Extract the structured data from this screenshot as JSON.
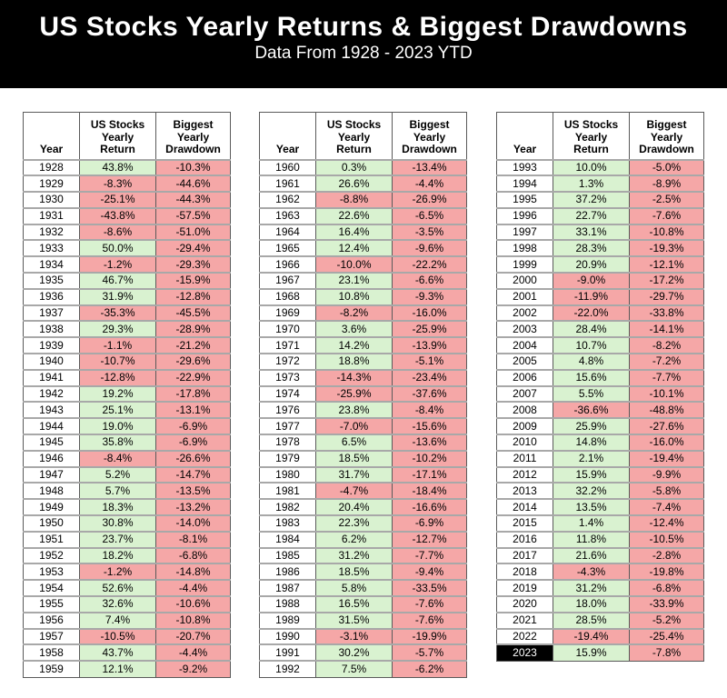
{
  "header": {
    "title": "US Stocks Yearly Returns & Biggest Drawdowns",
    "subtitle": "Data From 1928 - 2023 YTD"
  },
  "chart_data": {
    "type": "table",
    "headers": [
      "Year",
      "US Stocks\nYearly\nReturn",
      "Biggest\nYearly\nDrawdown"
    ],
    "highlight_year": "2023",
    "colors": {
      "positive_bg": "#d9f2d0",
      "negative_bg": "#f5a7a7",
      "highlight_bg": "#000000",
      "highlight_text": "#ffffff",
      "banner_bg": "#000000",
      "banner_text": "#ffffff"
    },
    "tables": [
      {
        "rows": [
          [
            "1928",
            "43.8%",
            "-10.3%"
          ],
          [
            "1929",
            "-8.3%",
            "-44.6%"
          ],
          [
            "1930",
            "-25.1%",
            "-44.3%"
          ],
          [
            "1931",
            "-43.8%",
            "-57.5%"
          ],
          [
            "1932",
            "-8.6%",
            "-51.0%"
          ],
          [
            "1933",
            "50.0%",
            "-29.4%"
          ],
          [
            "1934",
            "-1.2%",
            "-29.3%"
          ],
          [
            "1935",
            "46.7%",
            "-15.9%"
          ],
          [
            "1936",
            "31.9%",
            "-12.8%"
          ],
          [
            "1937",
            "-35.3%",
            "-45.5%"
          ],
          [
            "1938",
            "29.3%",
            "-28.9%"
          ],
          [
            "1939",
            "-1.1%",
            "-21.2%"
          ],
          [
            "1940",
            "-10.7%",
            "-29.6%"
          ],
          [
            "1941",
            "-12.8%",
            "-22.9%"
          ],
          [
            "1942",
            "19.2%",
            "-17.8%"
          ],
          [
            "1943",
            "25.1%",
            "-13.1%"
          ],
          [
            "1944",
            "19.0%",
            "-6.9%"
          ],
          [
            "1945",
            "35.8%",
            "-6.9%"
          ],
          [
            "1946",
            "-8.4%",
            "-26.6%"
          ],
          [
            "1947",
            "5.2%",
            "-14.7%"
          ],
          [
            "1948",
            "5.7%",
            "-13.5%"
          ],
          [
            "1949",
            "18.3%",
            "-13.2%"
          ],
          [
            "1950",
            "30.8%",
            "-14.0%"
          ],
          [
            "1951",
            "23.7%",
            "-8.1%"
          ],
          [
            "1952",
            "18.2%",
            "-6.8%"
          ],
          [
            "1953",
            "-1.2%",
            "-14.8%"
          ],
          [
            "1954",
            "52.6%",
            "-4.4%"
          ],
          [
            "1955",
            "32.6%",
            "-10.6%"
          ],
          [
            "1956",
            "7.4%",
            "-10.8%"
          ],
          [
            "1957",
            "-10.5%",
            "-20.7%"
          ],
          [
            "1958",
            "43.7%",
            "-4.4%"
          ],
          [
            "1959",
            "12.1%",
            "-9.2%"
          ]
        ]
      },
      {
        "rows": [
          [
            "1960",
            "0.3%",
            "-13.4%"
          ],
          [
            "1961",
            "26.6%",
            "-4.4%"
          ],
          [
            "1962",
            "-8.8%",
            "-26.9%"
          ],
          [
            "1963",
            "22.6%",
            "-6.5%"
          ],
          [
            "1964",
            "16.4%",
            "-3.5%"
          ],
          [
            "1965",
            "12.4%",
            "-9.6%"
          ],
          [
            "1966",
            "-10.0%",
            "-22.2%"
          ],
          [
            "1967",
            "23.1%",
            "-6.6%"
          ],
          [
            "1968",
            "10.8%",
            "-9.3%"
          ],
          [
            "1969",
            "-8.2%",
            "-16.0%"
          ],
          [
            "1970",
            "3.6%",
            "-25.9%"
          ],
          [
            "1971",
            "14.2%",
            "-13.9%"
          ],
          [
            "1972",
            "18.8%",
            "-5.1%"
          ],
          [
            "1973",
            "-14.3%",
            "-23.4%"
          ],
          [
            "1974",
            "-25.9%",
            "-37.6%"
          ],
          [
            "1976",
            "23.8%",
            "-8.4%"
          ],
          [
            "1977",
            "-7.0%",
            "-15.6%"
          ],
          [
            "1978",
            "6.5%",
            "-13.6%"
          ],
          [
            "1979",
            "18.5%",
            "-10.2%"
          ],
          [
            "1980",
            "31.7%",
            "-17.1%"
          ],
          [
            "1981",
            "-4.7%",
            "-18.4%"
          ],
          [
            "1982",
            "20.4%",
            "-16.6%"
          ],
          [
            "1983",
            "22.3%",
            "-6.9%"
          ],
          [
            "1984",
            "6.2%",
            "-12.7%"
          ],
          [
            "1985",
            "31.2%",
            "-7.7%"
          ],
          [
            "1986",
            "18.5%",
            "-9.4%"
          ],
          [
            "1987",
            "5.8%",
            "-33.5%"
          ],
          [
            "1988",
            "16.5%",
            "-7.6%"
          ],
          [
            "1989",
            "31.5%",
            "-7.6%"
          ],
          [
            "1990",
            "-3.1%",
            "-19.9%"
          ],
          [
            "1991",
            "30.2%",
            "-5.7%"
          ],
          [
            "1992",
            "7.5%",
            "-6.2%"
          ]
        ]
      },
      {
        "rows": [
          [
            "1993",
            "10.0%",
            "-5.0%"
          ],
          [
            "1994",
            "1.3%",
            "-8.9%"
          ],
          [
            "1995",
            "37.2%",
            "-2.5%"
          ],
          [
            "1996",
            "22.7%",
            "-7.6%"
          ],
          [
            "1997",
            "33.1%",
            "-10.8%"
          ],
          [
            "1998",
            "28.3%",
            "-19.3%"
          ],
          [
            "1999",
            "20.9%",
            "-12.1%"
          ],
          [
            "2000",
            "-9.0%",
            "-17.2%"
          ],
          [
            "2001",
            "-11.9%",
            "-29.7%"
          ],
          [
            "2002",
            "-22.0%",
            "-33.8%"
          ],
          [
            "2003",
            "28.4%",
            "-14.1%"
          ],
          [
            "2004",
            "10.7%",
            "-8.2%"
          ],
          [
            "2005",
            "4.8%",
            "-7.2%"
          ],
          [
            "2006",
            "15.6%",
            "-7.7%"
          ],
          [
            "2007",
            "5.5%",
            "-10.1%"
          ],
          [
            "2008",
            "-36.6%",
            "-48.8%"
          ],
          [
            "2009",
            "25.9%",
            "-27.6%"
          ],
          [
            "2010",
            "14.8%",
            "-16.0%"
          ],
          [
            "2011",
            "2.1%",
            "-19.4%"
          ],
          [
            "2012",
            "15.9%",
            "-9.9%"
          ],
          [
            "2013",
            "32.2%",
            "-5.8%"
          ],
          [
            "2014",
            "13.5%",
            "-7.4%"
          ],
          [
            "2015",
            "1.4%",
            "-12.4%"
          ],
          [
            "2016",
            "11.8%",
            "-10.5%"
          ],
          [
            "2017",
            "21.6%",
            "-2.8%"
          ],
          [
            "2018",
            "-4.3%",
            "-19.8%"
          ],
          [
            "2019",
            "31.2%",
            "-6.8%"
          ],
          [
            "2020",
            "18.0%",
            "-33.9%"
          ],
          [
            "2021",
            "28.5%",
            "-5.2%"
          ],
          [
            "2022",
            "-19.4%",
            "-25.4%"
          ],
          [
            "2023",
            "15.9%",
            "-7.8%"
          ]
        ]
      }
    ]
  }
}
